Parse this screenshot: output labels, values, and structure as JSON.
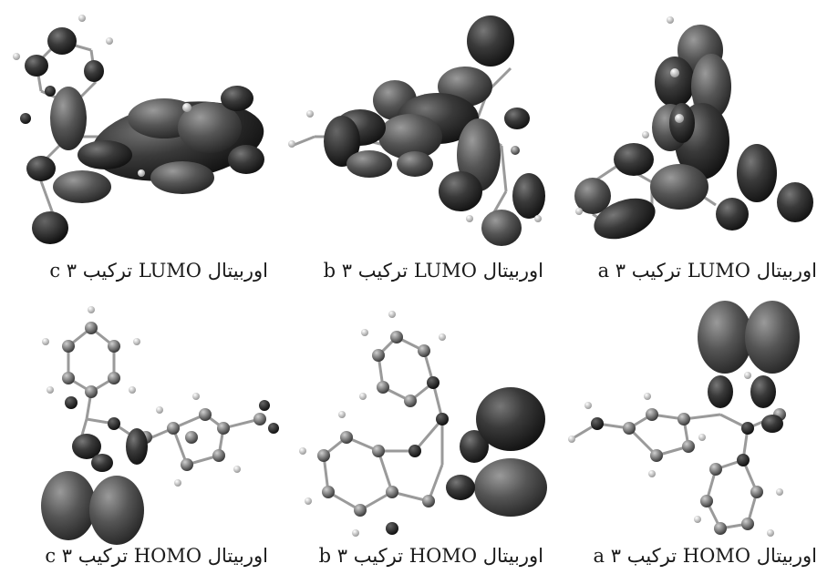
{
  "figure": {
    "panels": [
      {
        "id": "lumo-c",
        "caption": "اوربیتال LUMO ترکیب c ۳"
      },
      {
        "id": "lumo-b",
        "caption": "اوربیتال LUMO ترکیب b ۳"
      },
      {
        "id": "lumo-a",
        "caption": "اوربیتال LUMO ترکیب a ۳"
      },
      {
        "id": "homo-c",
        "caption": "اوربیتال HOMO ترکیب c ۳"
      },
      {
        "id": "homo-b",
        "caption": "اوربیتال HOMO ترکیب b ۳"
      },
      {
        "id": "homo-a",
        "caption": "اوربیتال HOMO ترکیب a ۳"
      }
    ]
  },
  "colors": {
    "lobe": "#2b2b2b",
    "lobe_light": "#5a5a5a",
    "atom": "#7a7a7a",
    "bond": "#9a9a9a",
    "hydrogen": "#e8e8e8"
  }
}
